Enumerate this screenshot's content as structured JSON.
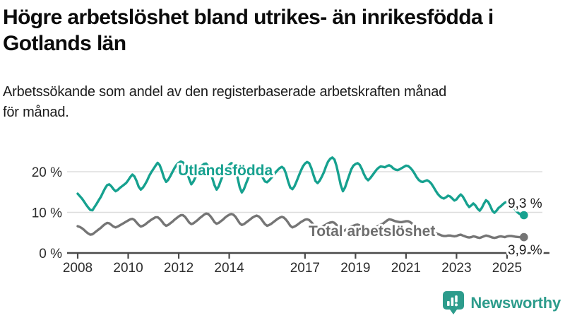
{
  "header": {
    "title_line1": "Högre arbetslöshet bland utrikes- än inrikesfödda i",
    "title_line2": "Gotlands län",
    "subtitle_line1": "Arbetssökande som andel av den registerbaserade arbetskraften månad",
    "subtitle_line2": "för månad."
  },
  "chart_data": {
    "type": "line",
    "title": "Högre arbetslöshet bland utrikes- än inrikesfödda i Gotlands län",
    "subtitle": "Arbetssökande som andel av den registerbaserade arbetskraften månad för månad.",
    "x_unit": "monthly",
    "x_start": "2008-01",
    "x_end": "2025-09",
    "xticks": [
      2008,
      2010,
      2012,
      2014,
      2017,
      2019,
      2021,
      2023,
      2025
    ],
    "yticks": [
      {
        "pct": 0,
        "label": "0 %"
      },
      {
        "pct": 10,
        "label": "10 %"
      },
      {
        "pct": 20,
        "label": "20 %"
      }
    ],
    "ylim": [
      0,
      26
    ],
    "grid": "horizontal",
    "colors": {
      "foreign_born": "#16A18F",
      "total": "#757575",
      "gridline": "#dddddd",
      "axis": "#4a4a4a",
      "tick_text": "#2d2d2d",
      "annotation_text": "#1d1d1d"
    },
    "series": [
      {
        "name": "Utlandsfödda",
        "end_label": "9,3 %",
        "end_value": 9.3,
        "values": [
          14.6,
          14.0,
          13.4,
          12.7,
          11.9,
          11.2,
          10.6,
          10.5,
          11.3,
          12.1,
          13.0,
          13.8,
          14.9,
          15.9,
          16.7,
          16.9,
          16.4,
          15.7,
          15.2,
          15.5,
          16.0,
          16.4,
          16.8,
          17.2,
          17.9,
          18.7,
          19.3,
          18.8,
          17.7,
          16.3,
          15.6,
          16.1,
          16.9,
          17.8,
          19.0,
          19.9,
          20.7,
          21.5,
          22.2,
          21.6,
          20.2,
          18.5,
          17.5,
          18.0,
          18.9,
          19.9,
          20.9,
          21.7,
          22.2,
          22.5,
          22.3,
          21.3,
          19.8,
          18.2,
          16.9,
          17.6,
          18.7,
          19.8,
          20.8,
          21.5,
          21.9,
          22.0,
          21.4,
          20.1,
          18.4,
          16.7,
          15.6,
          16.4,
          17.8,
          19.1,
          20.3,
          21.1,
          21.7,
          22.1,
          21.8,
          20.4,
          18.4,
          16.1,
          14.9,
          15.7,
          17.1,
          18.4,
          19.6,
          20.4,
          20.8,
          21.0,
          20.6,
          19.7,
          18.5,
          17.6,
          17.4,
          17.9,
          18.5,
          19.1,
          19.8,
          20.4,
          20.9,
          21.2,
          20.8,
          19.5,
          17.6,
          16.1,
          15.7,
          16.4,
          17.6,
          18.9,
          20.2,
          21.3,
          22.0,
          22.4,
          22.1,
          20.9,
          19.2,
          17.7,
          17.2,
          17.8,
          18.8,
          19.9,
          21.3,
          22.5,
          23.2,
          23.5,
          23.0,
          21.4,
          19.1,
          16.7,
          15.2,
          16.1,
          17.6,
          19.1,
          20.6,
          21.5,
          21.9,
          22.1,
          21.7,
          20.7,
          19.4,
          18.4,
          17.9,
          18.4,
          19.1,
          19.8,
          20.5,
          21.0,
          21.3,
          21.2,
          21.1,
          21.4,
          21.6,
          21.3,
          20.8,
          20.5,
          20.4,
          20.6,
          20.9,
          21.2,
          21.5,
          21.4,
          21.0,
          20.4,
          19.6,
          18.7,
          18.0,
          17.6,
          17.5,
          17.7,
          17.9,
          17.6,
          17.1,
          16.3,
          15.4,
          14.6,
          14.0,
          13.6,
          13.4,
          13.7,
          14.1,
          13.9,
          13.4,
          12.9,
          13.2,
          13.9,
          14.4,
          13.9,
          13.0,
          12.0,
          11.3,
          11.7,
          12.2,
          11.7,
          10.9,
          10.4,
          11.1,
          12.1,
          13.0,
          12.6,
          11.6,
          10.4,
          9.9,
          10.4,
          11.1,
          11.5,
          12.0,
          12.4,
          12.6,
          12.4,
          11.9,
          11.3,
          10.6,
          10.0,
          9.6,
          9.4,
          9.3
        ]
      },
      {
        "name": "Total arbetslöshet",
        "end_label": "3,9 %",
        "end_value": 3.9,
        "values": [
          6.6,
          6.4,
          6.1,
          5.7,
          5.2,
          4.8,
          4.5,
          4.6,
          5.0,
          5.4,
          5.8,
          6.2,
          6.7,
          7.1,
          7.4,
          7.3,
          6.9,
          6.5,
          6.3,
          6.5,
          6.8,
          7.1,
          7.4,
          7.7,
          8.0,
          8.3,
          8.4,
          8.1,
          7.5,
          6.9,
          6.5,
          6.7,
          7.0,
          7.4,
          7.8,
          8.2,
          8.5,
          8.8,
          8.8,
          8.4,
          7.8,
          7.1,
          6.7,
          6.9,
          7.3,
          7.7,
          8.2,
          8.6,
          9.0,
          9.3,
          9.3,
          8.9,
          8.2,
          7.5,
          7.1,
          7.3,
          7.7,
          8.1,
          8.6,
          9.0,
          9.4,
          9.7,
          9.6,
          9.1,
          8.4,
          7.6,
          7.2,
          7.4,
          7.8,
          8.2,
          8.7,
          9.1,
          9.4,
          9.6,
          9.4,
          8.9,
          8.1,
          7.3,
          6.9,
          7.1,
          7.5,
          7.9,
          8.3,
          8.7,
          9.0,
          9.2,
          9.0,
          8.5,
          7.8,
          7.1,
          6.7,
          6.9,
          7.2,
          7.6,
          8.0,
          8.4,
          8.7,
          8.9,
          8.7,
          8.2,
          7.5,
          6.7,
          6.3,
          6.5,
          6.8,
          7.2,
          7.6,
          7.9,
          8.2,
          8.3,
          8.1,
          7.6,
          7.0,
          6.3,
          5.9,
          6.1,
          6.4,
          6.7,
          7.0,
          7.3,
          7.5,
          7.6,
          7.4,
          6.9,
          6.3,
          5.7,
          5.4,
          5.6,
          5.9,
          6.2,
          6.5,
          6.7,
          6.9,
          7.0,
          6.8,
          6.4,
          5.9,
          5.5,
          5.3,
          5.5,
          5.8,
          6.1,
          6.4,
          6.7,
          7.0,
          7.2,
          7.6,
          8.0,
          8.3,
          8.2,
          8.0,
          7.8,
          7.7,
          7.6,
          7.6,
          7.7,
          7.8,
          7.8,
          7.6,
          7.2,
          6.7,
          6.2,
          5.8,
          5.6,
          5.5,
          5.4,
          5.3,
          5.2,
          5.1,
          5.0,
          4.9,
          4.7,
          4.5,
          4.3,
          4.2,
          4.2,
          4.3,
          4.3,
          4.2,
          4.1,
          4.2,
          4.4,
          4.5,
          4.3,
          4.1,
          3.9,
          3.8,
          3.9,
          4.1,
          4.0,
          3.8,
          3.7,
          3.9,
          4.1,
          4.3,
          4.2,
          4.0,
          3.8,
          3.7,
          3.8,
          4.0,
          4.1,
          4.0,
          3.9,
          4.1,
          4.2,
          4.2,
          4.1,
          4.0,
          3.95,
          3.9,
          3.9,
          3.9
        ]
      }
    ]
  },
  "footer": {
    "brand": "Newsworthy",
    "brand_color": "#2D9C8C",
    "logo_icon": "bar-chart-speech-bubble"
  }
}
